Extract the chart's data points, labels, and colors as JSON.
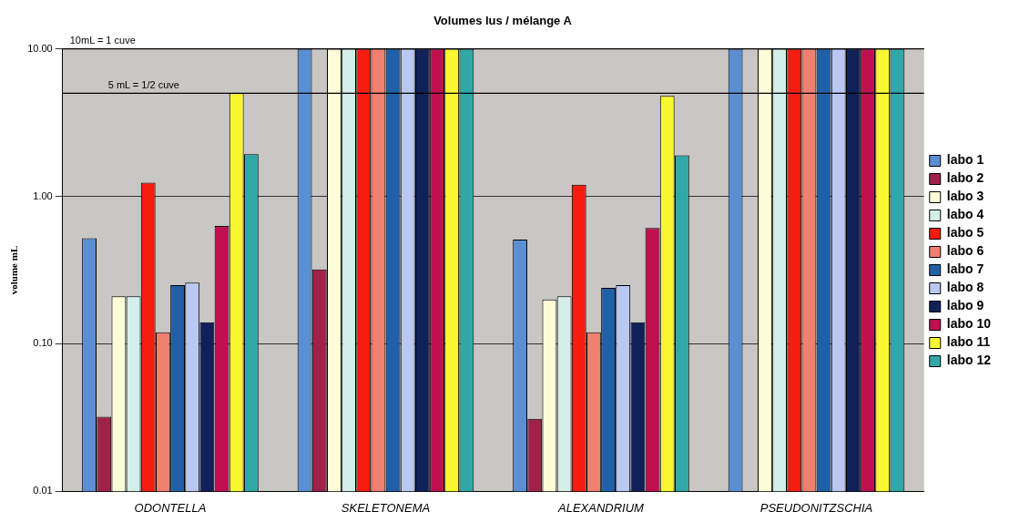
{
  "chart_data": {
    "type": "bar",
    "title": "Volumes lus / mélange A",
    "ylabel": "volume mL",
    "categories": [
      "ODONTELLA",
      "SKELETONEMA",
      "ALEXANDRIUM",
      "PSEUDONITZSCHIA"
    ],
    "series": [
      {
        "name": "labo 1",
        "color": "#5b8fd4",
        "values": [
          0.52,
          10,
          0.51,
          10
        ]
      },
      {
        "name": "labo 2",
        "color": "#a0224a",
        "values": [
          0.032,
          0.32,
          0.031,
          null
        ]
      },
      {
        "name": "labo 3",
        "color": "#fcfcd8",
        "values": [
          0.21,
          10,
          0.2,
          10
        ]
      },
      {
        "name": "labo 4",
        "color": "#d4efe8",
        "values": [
          0.21,
          10,
          0.21,
          10
        ]
      },
      {
        "name": "labo 5",
        "color": "#f51c10",
        "values": [
          1.24,
          10,
          1.2,
          10
        ]
      },
      {
        "name": "labo 6",
        "color": "#f08070",
        "values": [
          0.12,
          10,
          0.12,
          10
        ]
      },
      {
        "name": "labo 7",
        "color": "#2060a8",
        "values": [
          0.25,
          10,
          0.24,
          10
        ]
      },
      {
        "name": "labo 8",
        "color": "#b8c8f0",
        "values": [
          0.26,
          10,
          0.25,
          10
        ]
      },
      {
        "name": "labo 9",
        "color": "#102058",
        "values": [
          0.14,
          10,
          0.14,
          10
        ]
      },
      {
        "name": "labo 10",
        "color": "#c01050",
        "values": [
          0.63,
          10,
          0.61,
          10
        ]
      },
      {
        "name": "labo 11",
        "color": "#f8f830",
        "values": [
          5,
          10,
          4.8,
          10
        ]
      },
      {
        "name": "labo 12",
        "color": "#30a8a8",
        "values": [
          1.93,
          10,
          1.9,
          10
        ]
      }
    ],
    "log": "y",
    "ylim": [
      0.01,
      10
    ],
    "yticks": [
      {
        "value": 0.01,
        "label": "0.01"
      },
      {
        "value": 0.1,
        "label": "0.10"
      },
      {
        "value": 1,
        "label": "1.00"
      },
      {
        "value": 10,
        "label": "10.00"
      }
    ],
    "grid": "y",
    "legend": "right",
    "ref_lines": [
      {
        "axis": "y",
        "value": 10,
        "label": "10mL = 1 cuve"
      },
      {
        "axis": "y",
        "value": 5,
        "label": "5 mL = 1/2 cuve"
      }
    ]
  }
}
